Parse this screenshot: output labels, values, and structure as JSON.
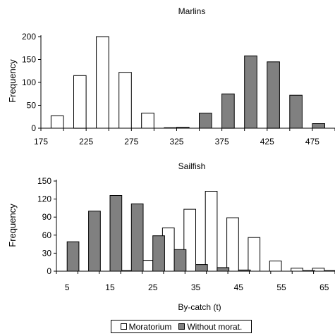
{
  "colors": {
    "moratorium": "#ffffff",
    "without": "#808080",
    "stroke": "#000000"
  },
  "legend": {
    "moratorium_label": "Moratorium",
    "without_label": "Without morat."
  },
  "chart_data": [
    {
      "type": "bar",
      "title": "Marlins",
      "ylabel": "Frequency",
      "xlabel": "",
      "bin_width": 25,
      "xlim": [
        175,
        500
      ],
      "ylim": [
        0,
        200
      ],
      "yticks": [
        0,
        50,
        100,
        150,
        200
      ],
      "xticks": [
        175,
        225,
        275,
        325,
        375,
        425,
        475
      ],
      "series": [
        {
          "name": "Moratorium",
          "x": [
            200,
            225,
            250,
            275,
            300,
            325
          ],
          "values": [
            27,
            115,
            200,
            122,
            33,
            1
          ]
        },
        {
          "name": "Without morat.",
          "x": [
            325,
            350,
            375,
            400,
            425,
            450,
            475
          ],
          "values": [
            2,
            33,
            75,
            158,
            145,
            72,
            10
          ]
        }
      ]
    },
    {
      "type": "bar",
      "title": "Sailfish",
      "ylabel": "Frequency",
      "xlabel": "By-catch (t)",
      "bin_width": 5,
      "xlim": [
        2.5,
        67.5
      ],
      "ylim": [
        0,
        150
      ],
      "yticks": [
        0,
        30,
        60,
        90,
        120,
        150
      ],
      "xticks": [
        5,
        15,
        25,
        35,
        45,
        55,
        65
      ],
      "series": [
        {
          "name": "Moratorium",
          "x": [
            20,
            25,
            30,
            35,
            40,
            45,
            50,
            55,
            60,
            65
          ],
          "values": [
            1,
            18,
            72,
            103,
            133,
            89,
            56,
            17,
            5,
            5
          ]
        },
        {
          "name": "Without morat.",
          "x": [
            5,
            10,
            15,
            20,
            25,
            30,
            35,
            40,
            45,
            50,
            55,
            60,
            65
          ],
          "values": [
            49,
            100,
            126,
            112,
            59,
            36,
            11,
            6,
            2,
            0,
            0,
            1,
            1
          ]
        }
      ]
    }
  ]
}
